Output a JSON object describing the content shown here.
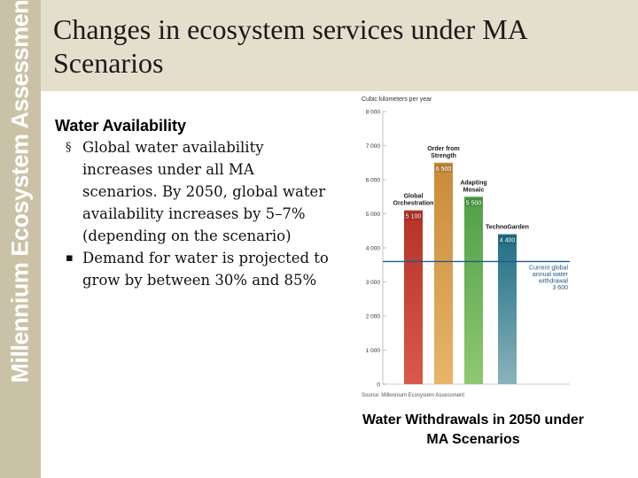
{
  "sidebar": {
    "text": "Millennium Ecosystem Assessment"
  },
  "header": {
    "title": "Changes in ecosystem services under MA Scenarios"
  },
  "content": {
    "heading": "Water Availability",
    "bullets": [
      {
        "marker": "§",
        "text": "Global water availability increases under all MA scenarios.  By 2050, global water availability increases by 5–7% (depending on the scenario)"
      },
      {
        "marker": "▪",
        "text": "Demand for water is projected to grow by between 30% and 85%"
      }
    ]
  },
  "chart_data": {
    "type": "bar",
    "title": "",
    "ylabel": "Cubic kilometers per year",
    "xlabel": "",
    "ylim": [
      0,
      8000
    ],
    "yticks": [
      0,
      1000,
      2000,
      3000,
      4000,
      5000,
      6000,
      7000,
      8000
    ],
    "ytick_labels": [
      "0",
      "1 000",
      "2 000",
      "3 000",
      "4 000",
      "5 000",
      "6 000",
      "7 000",
      "8 000"
    ],
    "categories": [
      "Global Orchestration",
      "Order from Strength",
      "Adapting Mosaic",
      "TechnoGarden"
    ],
    "cat_labels": [
      [
        "Global",
        "Orchestration"
      ],
      [
        "Order from",
        "Strength"
      ],
      [
        "Adapting",
        "Mosaic"
      ],
      [
        "TechnoGarden"
      ]
    ],
    "values": [
      5100,
      6500,
      5500,
      4400
    ],
    "value_labels": [
      "5 100",
      "6 500",
      "5 500",
      "4 400"
    ],
    "colors": [
      "#b53228",
      "#c98a3a",
      "#4fa046",
      "#1e6e84"
    ],
    "lower_colors": [
      "#d85a4c",
      "#e8b56a",
      "#90c872",
      "#8ab3bc"
    ],
    "reference": {
      "value": 3600,
      "label_lines": [
        "Current global",
        "annual water",
        "withdrawal"
      ],
      "value_label": "3 600",
      "color": "#1f5a8c"
    },
    "source": "Source: Millennium Ecosystem Assessment",
    "caption": "Water Withdrawals in 2050 under MA Scenarios"
  }
}
